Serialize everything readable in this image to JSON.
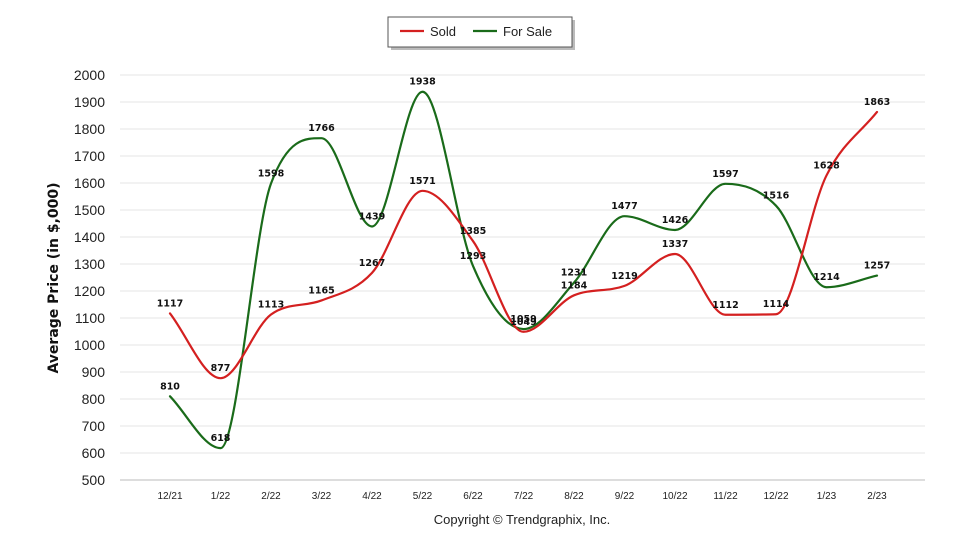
{
  "chart_data": {
    "type": "line",
    "categories": [
      "12/21",
      "1/22",
      "2/22",
      "3/22",
      "4/22",
      "5/22",
      "6/22",
      "7/22",
      "8/22",
      "9/22",
      "10/22",
      "11/22",
      "12/22",
      "1/23",
      "2/23"
    ],
    "series": [
      {
        "name": "Sold",
        "color": "#d42020",
        "values": [
          1117,
          877,
          1113,
          1165,
          1267,
          1571,
          1385,
          1049,
          1184,
          1219,
          1337,
          1112,
          1114,
          1628,
          1863
        ]
      },
      {
        "name": "For Sale",
        "color": "#1a6b1a",
        "values": [
          810,
          618,
          1598,
          1766,
          1439,
          1938,
          1293,
          1059,
          1231,
          1477,
          1426,
          1597,
          1516,
          1214,
          1257
        ]
      }
    ],
    "title": "",
    "xlabel": "",
    "ylabel": "Average Price (in $,000)",
    "ylim": [
      500,
      2000
    ],
    "yticks": [
      500,
      600,
      700,
      800,
      900,
      1000,
      1100,
      1200,
      1300,
      1400,
      1500,
      1600,
      1700,
      1800,
      1900,
      2000
    ],
    "grid": true,
    "legend_position": "top-center",
    "smooth": true,
    "footer": "Copyright © Trendgraphix, Inc."
  }
}
